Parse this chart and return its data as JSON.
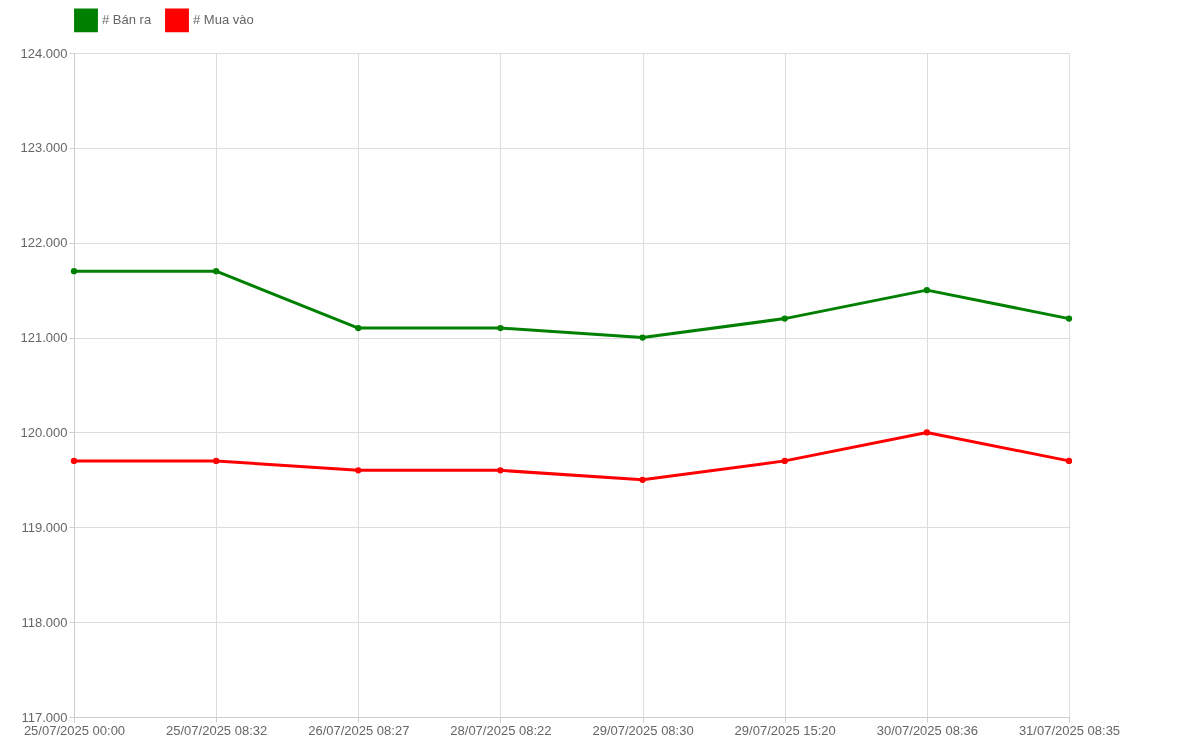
{
  "chart_data": {
    "type": "line",
    "categories": [
      "25/07/2025 00:00",
      "25/07/2025 08:32",
      "26/07/2025 08:27",
      "28/07/2025 08:22",
      "29/07/2025 08:30",
      "29/07/2025 15:20",
      "30/07/2025 08:36",
      "31/07/2025 08:35"
    ],
    "series": [
      {
        "name": "# Bán ra",
        "color": "#008000",
        "values": [
          121700,
          121700,
          121100,
          121100,
          121000,
          121200,
          121500,
          121200
        ]
      },
      {
        "name": "# Mua vào",
        "color": "#ff0000",
        "values": [
          119700,
          119700,
          119600,
          119600,
          119500,
          119700,
          120000,
          119700
        ]
      }
    ],
    "ylim": [
      117000,
      124000
    ],
    "yticks": [
      {
        "value": 117000,
        "label": "117.000"
      },
      {
        "value": 118000,
        "label": "118.000"
      },
      {
        "value": 119000,
        "label": "119.000"
      },
      {
        "value": 120000,
        "label": "120.000"
      },
      {
        "value": 121000,
        "label": "121.000"
      },
      {
        "value": 122000,
        "label": "122.000"
      },
      {
        "value": 123000,
        "label": "123.000"
      },
      {
        "value": 124000,
        "label": "124.000"
      }
    ],
    "grid": true,
    "legend": "top",
    "marker": "circle",
    "line_style": "solid"
  }
}
